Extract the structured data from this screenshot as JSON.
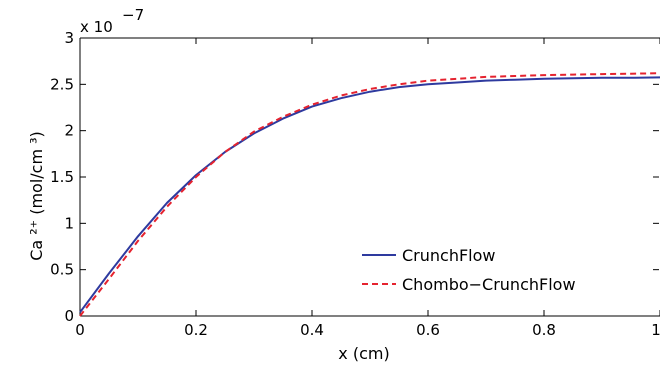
{
  "chart_data": {
    "type": "line",
    "title": "",
    "xlabel": "x (cm)",
    "ylabel": "Ca ²⁺ (mol/cm ³)",
    "y_multiplier": "x 10",
    "y_exponent": "−7",
    "xlim": [
      0,
      1
    ],
    "ylim": [
      0,
      3
    ],
    "xticks": [
      0,
      0.2,
      0.4,
      0.6,
      0.8,
      1
    ],
    "xtick_labels": [
      "0",
      "0.2",
      "0.4",
      "0.6",
      "0.8",
      "1"
    ],
    "yticks": [
      0,
      0.5,
      1,
      1.5,
      2,
      2.5,
      3
    ],
    "ytick_labels": [
      "0",
      "0.5",
      "1",
      "1.5",
      "2",
      "2.5",
      "3"
    ],
    "grid": false,
    "legend_position": "center-right",
    "series": [
      {
        "name": "CrunchFlow",
        "color": "#2e3a9f",
        "style": "solid",
        "x": [
          0,
          0.05,
          0.1,
          0.15,
          0.2,
          0.25,
          0.3,
          0.35,
          0.4,
          0.45,
          0.5,
          0.55,
          0.6,
          0.65,
          0.7,
          0.75,
          0.8,
          0.85,
          0.9,
          0.95,
          1.0
        ],
        "y": [
          0.04,
          0.46,
          0.86,
          1.22,
          1.52,
          1.77,
          1.97,
          2.13,
          2.26,
          2.35,
          2.42,
          2.47,
          2.5,
          2.52,
          2.54,
          2.55,
          2.56,
          2.565,
          2.57,
          2.57,
          2.575
        ]
      },
      {
        "name": "Chombo−CrunchFlow",
        "color": "#e5232f",
        "style": "dashed",
        "x": [
          0,
          0.05,
          0.1,
          0.15,
          0.2,
          0.25,
          0.3,
          0.35,
          0.4,
          0.45,
          0.5,
          0.55,
          0.6,
          0.65,
          0.7,
          0.75,
          0.8,
          0.85,
          0.9,
          0.95,
          1.0
        ],
        "y": [
          0.0,
          0.4,
          0.81,
          1.18,
          1.5,
          1.77,
          1.99,
          2.15,
          2.28,
          2.38,
          2.45,
          2.5,
          2.54,
          2.56,
          2.58,
          2.59,
          2.6,
          2.605,
          2.61,
          2.615,
          2.62
        ]
      }
    ]
  }
}
